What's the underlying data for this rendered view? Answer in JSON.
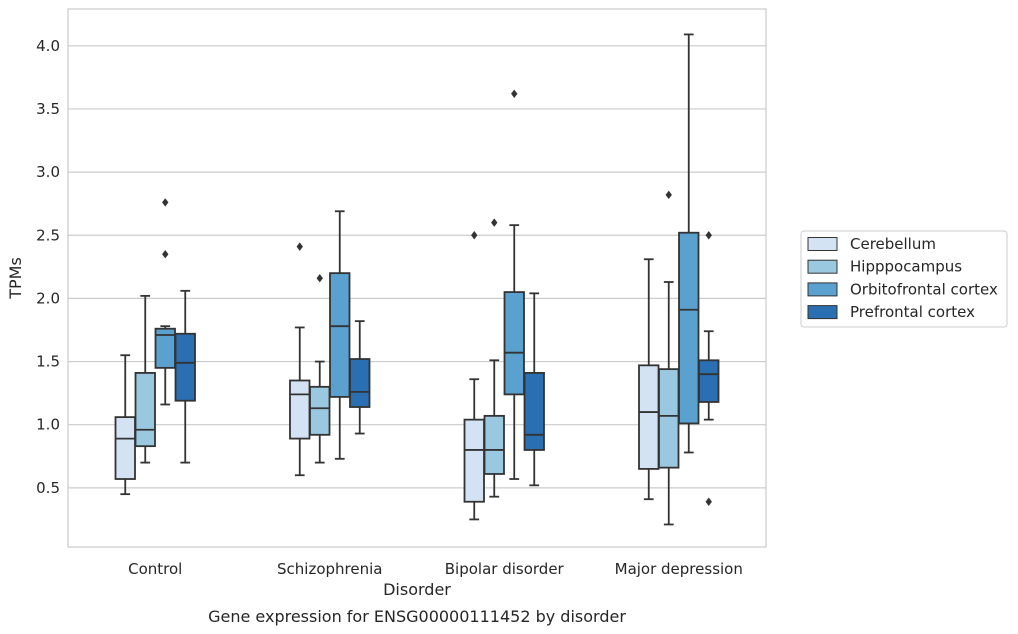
{
  "chart_data": {
    "type": "box",
    "caption": "Gene expression for ENSG00000111452 by disorder",
    "xlabel": "Disorder",
    "ylabel": "TPMs",
    "ylim": [
      0.0,
      4.3
    ],
    "yticks": [
      "0.5",
      "1.0",
      "1.5",
      "2.0",
      "2.5",
      "3.0",
      "3.5",
      "4.0"
    ],
    "grid": "horizontal",
    "legend_position": "right",
    "categories": [
      "Control",
      "Schizophrenia",
      "Bipolar disorder",
      "Major depression"
    ],
    "series": [
      {
        "name": "Cerebellum",
        "color": "#d3e3f3",
        "boxes": [
          {
            "whislo": 0.45,
            "q1": 0.57,
            "med": 0.89,
            "q3": 1.06,
            "whishi": 1.55,
            "fliers": []
          },
          {
            "whislo": 0.6,
            "q1": 0.89,
            "med": 1.24,
            "q3": 1.35,
            "whishi": 1.77,
            "fliers": [
              2.41
            ]
          },
          {
            "whislo": 0.25,
            "q1": 0.39,
            "med": 0.8,
            "q3": 1.04,
            "whishi": 1.36,
            "fliers": [
              2.5
            ]
          },
          {
            "whislo": 0.41,
            "q1": 0.65,
            "med": 1.1,
            "q3": 1.47,
            "whishi": 2.31,
            "fliers": []
          }
        ]
      },
      {
        "name": "Hipppocampus",
        "color": "#9ac8e0",
        "boxes": [
          {
            "whislo": 0.7,
            "q1": 0.83,
            "med": 0.96,
            "q3": 1.41,
            "whishi": 2.02,
            "fliers": []
          },
          {
            "whislo": 0.7,
            "q1": 0.92,
            "med": 1.13,
            "q3": 1.3,
            "whishi": 1.5,
            "fliers": [
              2.16
            ]
          },
          {
            "whislo": 0.43,
            "q1": 0.61,
            "med": 0.8,
            "q3": 1.07,
            "whishi": 1.51,
            "fliers": [
              2.6
            ]
          },
          {
            "whislo": 0.21,
            "q1": 0.66,
            "med": 1.07,
            "q3": 1.44,
            "whishi": 2.13,
            "fliers": [
              2.82
            ]
          }
        ]
      },
      {
        "name": "Orbitofrontal cortex",
        "color": "#5aa1cf",
        "boxes": [
          {
            "whislo": 1.16,
            "q1": 1.45,
            "med": 1.71,
            "q3": 1.76,
            "whishi": 1.78,
            "fliers": [
              2.35,
              2.76
            ]
          },
          {
            "whislo": 0.73,
            "q1": 1.22,
            "med": 1.78,
            "q3": 2.2,
            "whishi": 2.69,
            "fliers": []
          },
          {
            "whislo": 0.57,
            "q1": 1.24,
            "med": 1.57,
            "q3": 2.05,
            "whishi": 2.58,
            "fliers": [
              3.62
            ]
          },
          {
            "whislo": 0.78,
            "q1": 1.01,
            "med": 1.91,
            "q3": 2.52,
            "whishi": 4.09,
            "fliers": []
          }
        ]
      },
      {
        "name": "Prefrontal cortex",
        "color": "#2a6fb2",
        "boxes": [
          {
            "whislo": 0.7,
            "q1": 1.19,
            "med": 1.49,
            "q3": 1.72,
            "whishi": 2.06,
            "fliers": []
          },
          {
            "whislo": 0.93,
            "q1": 1.14,
            "med": 1.26,
            "q3": 1.52,
            "whishi": 1.82,
            "fliers": []
          },
          {
            "whislo": 0.52,
            "q1": 0.8,
            "med": 0.92,
            "q3": 1.41,
            "whishi": 2.04,
            "fliers": []
          },
          {
            "whislo": 1.04,
            "q1": 1.18,
            "med": 1.4,
            "q3": 1.51,
            "whishi": 1.74,
            "fliers": [
              2.5,
              0.39
            ]
          }
        ]
      }
    ]
  }
}
